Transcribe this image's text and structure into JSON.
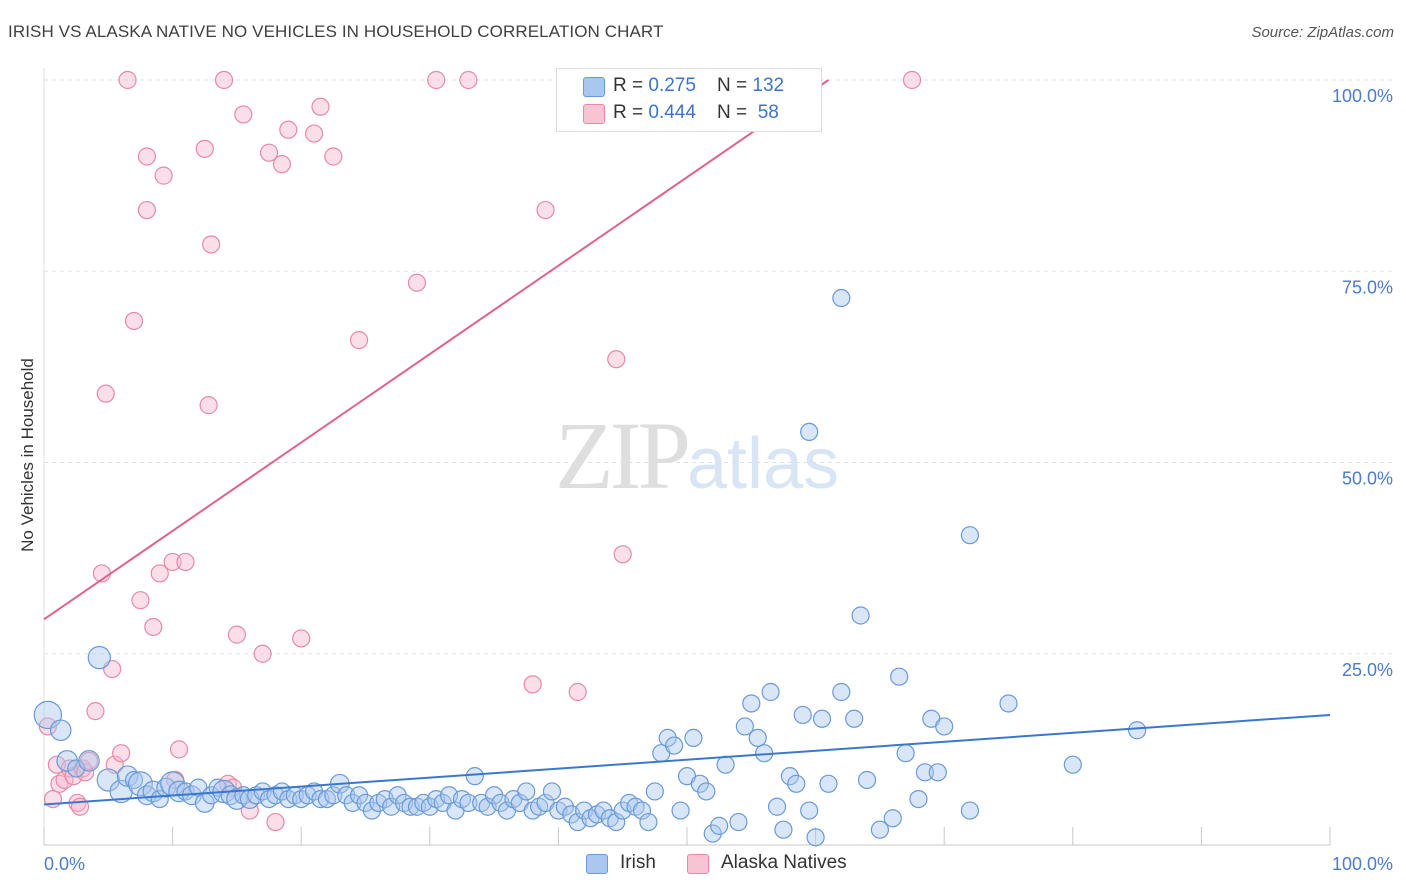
{
  "title": "IRISH VS ALASKA NATIVE NO VEHICLES IN HOUSEHOLD CORRELATION CHART",
  "source": "Source: ZipAtlas.com",
  "watermark": {
    "zip": "ZIP",
    "atlas": "atlas"
  },
  "colors": {
    "irish_fill": "#aac7f0",
    "irish_stroke": "#6a9ad6",
    "irish_line": "#3a78d0",
    "alaska_fill": "#f7b9cb",
    "alaska_stroke": "#e68aa6",
    "alaska_line": "#e0628a",
    "grid": "#dde0e6",
    "tick_text": "#4a7cc9"
  },
  "legend": {
    "irish": {
      "r_label": "R = ",
      "r_value": "0.275",
      "n_label": "N = ",
      "n_value": "132"
    },
    "alaska": {
      "r_label": "R = ",
      "r_value": "0.444",
      "n_label": "N = ",
      "n_value": " 58"
    }
  },
  "bottom_legend": {
    "irish": "Irish",
    "alaska": "Alaska Natives"
  },
  "chart_data": {
    "type": "scatter",
    "title": "IRISH VS ALASKA NATIVE NO VEHICLES IN HOUSEHOLD CORRELATION CHART",
    "xlabel": "",
    "ylabel": "No Vehicles in Household",
    "xlim": [
      0,
      100
    ],
    "ylim": [
      0,
      100
    ],
    "x_tick_labels": [
      "0.0%",
      "100.0%"
    ],
    "y_tick_labels": [
      "25.0%",
      "50.0%",
      "75.0%",
      "100.0%"
    ],
    "y_ticks": [
      25,
      50,
      75,
      100
    ],
    "legend_position": "top-center",
    "grid": true,
    "series": [
      {
        "name": "Irish",
        "r": 0.275,
        "n": 132,
        "trend": {
          "x": [
            0,
            100
          ],
          "y": [
            5.3,
            17.0
          ]
        },
        "points": [
          [
            0.3,
            17,
            1.6
          ],
          [
            1.3,
            15,
            1.2
          ],
          [
            1.8,
            11,
            1.2
          ],
          [
            2.5,
            10,
            1.0
          ],
          [
            3.5,
            11,
            1.2
          ],
          [
            4.3,
            24.5,
            1.3
          ],
          [
            5,
            8.5,
            1.3
          ],
          [
            6,
            7,
            1.3
          ],
          [
            6.5,
            9,
            1.2
          ],
          [
            7,
            8.5,
            1
          ],
          [
            7.5,
            8,
            1.4
          ],
          [
            8,
            6.5,
            1.1
          ],
          [
            8.5,
            7,
            1.2
          ],
          [
            9,
            6,
            1
          ],
          [
            9.5,
            7.5,
            1.1
          ],
          [
            10,
            8,
            1.4
          ],
          [
            10.5,
            7,
            1.2
          ],
          [
            11,
            7,
            1
          ],
          [
            11.5,
            6.5,
            1.1
          ],
          [
            12,
            7.5,
            1
          ],
          [
            12.5,
            5.5,
            1.1
          ],
          [
            13,
            6.5,
            1
          ],
          [
            13.5,
            7.5,
            1
          ],
          [
            14,
            7,
            1.3
          ],
          [
            14.5,
            6.5,
            1.1
          ],
          [
            15,
            6,
            1.2
          ],
          [
            15.5,
            6.5,
            1
          ],
          [
            16,
            6,
            1.1
          ],
          [
            16.5,
            6.5,
            1
          ],
          [
            17,
            7,
            1
          ],
          [
            17.5,
            6,
            1
          ],
          [
            18,
            6.5,
            1
          ],
          [
            18.5,
            7,
            1
          ],
          [
            19,
            6,
            1
          ],
          [
            19.5,
            6.5,
            1
          ],
          [
            20,
            6,
            1
          ],
          [
            20.5,
            6.5,
            1
          ],
          [
            21,
            7,
            1
          ],
          [
            21.5,
            6,
            1
          ],
          [
            22,
            6,
            1
          ],
          [
            22.5,
            6.5,
            1
          ],
          [
            23,
            8,
            1.1
          ],
          [
            23.5,
            6.5,
            1
          ],
          [
            24,
            5.5,
            1
          ],
          [
            24.5,
            6.5,
            1
          ],
          [
            25,
            5.5,
            1
          ],
          [
            25.5,
            4.5,
            1
          ],
          [
            26,
            5.5,
            1
          ],
          [
            26.5,
            6,
            1
          ],
          [
            27,
            5,
            1
          ],
          [
            27.5,
            6.5,
            1
          ],
          [
            28,
            5.5,
            1
          ],
          [
            28.5,
            5,
            1
          ],
          [
            29,
            5,
            1
          ],
          [
            29.5,
            5.5,
            1
          ],
          [
            30,
            5,
            1
          ],
          [
            30.5,
            6,
            1
          ],
          [
            31,
            5.5,
            1
          ],
          [
            31.5,
            6.5,
            1
          ],
          [
            32,
            4.5,
            1
          ],
          [
            32.5,
            6,
            1
          ],
          [
            33,
            5.5,
            1
          ],
          [
            33.5,
            9,
            1
          ],
          [
            34,
            5.5,
            1
          ],
          [
            34.5,
            5,
            1
          ],
          [
            35,
            6.5,
            1
          ],
          [
            35.5,
            5.5,
            1
          ],
          [
            36,
            4.5,
            1
          ],
          [
            36.5,
            6,
            1
          ],
          [
            37,
            5.5,
            1
          ],
          [
            37.5,
            7,
            1
          ],
          [
            38,
            4.5,
            1
          ],
          [
            38.5,
            5,
            1
          ],
          [
            39,
            5.5,
            1
          ],
          [
            39.5,
            7,
            1
          ],
          [
            40,
            4.5,
            1
          ],
          [
            40.5,
            5,
            1
          ],
          [
            41,
            4,
            1
          ],
          [
            41.5,
            3,
            1
          ],
          [
            42,
            4.5,
            1
          ],
          [
            42.5,
            3.5,
            1
          ],
          [
            43,
            4,
            1
          ],
          [
            43.5,
            4.5,
            1
          ],
          [
            44,
            3.5,
            1
          ],
          [
            44.5,
            3,
            1
          ],
          [
            45,
            4.5,
            1
          ],
          [
            45.5,
            5.5,
            1
          ],
          [
            46,
            5,
            1
          ],
          [
            46.5,
            4.5,
            1
          ],
          [
            47,
            3,
            1
          ],
          [
            47.5,
            7,
            1
          ],
          [
            48,
            12,
            1
          ],
          [
            48.5,
            14,
            1
          ],
          [
            49,
            13,
            1
          ],
          [
            49.5,
            4.5,
            1
          ],
          [
            50,
            9,
            1
          ],
          [
            50.5,
            14,
            1
          ],
          [
            51,
            8,
            1
          ],
          [
            51.5,
            7,
            1
          ],
          [
            52,
            1.5,
            1
          ],
          [
            52.5,
            2.5,
            1
          ],
          [
            53,
            10.5,
            1
          ],
          [
            54,
            3,
            1
          ],
          [
            54.5,
            15.5,
            1
          ],
          [
            55,
            18.5,
            1
          ],
          [
            55.5,
            14,
            1
          ],
          [
            56,
            12,
            1
          ],
          [
            56.5,
            20,
            1
          ],
          [
            57,
            5,
            1
          ],
          [
            57.5,
            2,
            1
          ],
          [
            58,
            9,
            1
          ],
          [
            58.5,
            8,
            1
          ],
          [
            59,
            17,
            1
          ],
          [
            59.5,
            4.5,
            1
          ],
          [
            60,
            1,
            1
          ],
          [
            60.5,
            16.5,
            1
          ],
          [
            61,
            8,
            1
          ],
          [
            62,
            20,
            1
          ],
          [
            63,
            16.5,
            1
          ],
          [
            64,
            8.5,
            1
          ],
          [
            65,
            2,
            1
          ],
          [
            66,
            3.5,
            1
          ],
          [
            66.5,
            22,
            1
          ],
          [
            67,
            12,
            1
          ],
          [
            68,
            6,
            1
          ],
          [
            68.5,
            9.5,
            1
          ],
          [
            69,
            16.5,
            1
          ],
          [
            69.5,
            9.5,
            1
          ],
          [
            70,
            15.5,
            1
          ],
          [
            72,
            4.5,
            1
          ],
          [
            75,
            18.5,
            1
          ],
          [
            80,
            10.5,
            1
          ],
          [
            85,
            15,
            1
          ],
          [
            59.5,
            54,
            1
          ],
          [
            62,
            71.5,
            1
          ],
          [
            63.5,
            30,
            1
          ],
          [
            72,
            40.5,
            1
          ]
        ]
      },
      {
        "name": "Alaska Natives",
        "r": 0.444,
        "n": 58,
        "trend": {
          "x": [
            0,
            61
          ],
          "y": [
            29.5,
            100
          ]
        },
        "points": [
          [
            0.3,
            15.5,
            1
          ],
          [
            0.7,
            6,
            1
          ],
          [
            1,
            10.5,
            1
          ],
          [
            1.2,
            8,
            1
          ],
          [
            1.6,
            8.5,
            1
          ],
          [
            2,
            10,
            1
          ],
          [
            2.3,
            9,
            1
          ],
          [
            2.6,
            5.5,
            1
          ],
          [
            2.8,
            5,
            1
          ],
          [
            3,
            10,
            1
          ],
          [
            3.2,
            9.5,
            1
          ],
          [
            3.5,
            11,
            1
          ],
          [
            4,
            17.5,
            1
          ],
          [
            4.5,
            35.5,
            1
          ],
          [
            4.8,
            59,
            1
          ],
          [
            5.3,
            23,
            1
          ],
          [
            5.5,
            10.5,
            1
          ],
          [
            6,
            12,
            1
          ],
          [
            6.5,
            100,
            1
          ],
          [
            7,
            68.5,
            1
          ],
          [
            7.5,
            32,
            1
          ],
          [
            8,
            83,
            1
          ],
          [
            8,
            90,
            1
          ],
          [
            8.5,
            28.5,
            1
          ],
          [
            9,
            35.5,
            1
          ],
          [
            9.3,
            87.5,
            1
          ],
          [
            10,
            37,
            1
          ],
          [
            10.5,
            12.5,
            1
          ],
          [
            11,
            37,
            1
          ],
          [
            12.5,
            91,
            1
          ],
          [
            12.8,
            57.5,
            1
          ],
          [
            13,
            78.5,
            1
          ],
          [
            14,
            100,
            1
          ],
          [
            14.3,
            8,
            1
          ],
          [
            14.7,
            7.5,
            1
          ],
          [
            15,
            27.5,
            1
          ],
          [
            15.5,
            95.5,
            1
          ],
          [
            16,
            4.5,
            1
          ],
          [
            17,
            25,
            1
          ],
          [
            17.5,
            90.5,
            1
          ],
          [
            18.5,
            89,
            1
          ],
          [
            19,
            93.5,
            1
          ],
          [
            20,
            27,
            1
          ],
          [
            21,
            93,
            1
          ],
          [
            21.5,
            96.5,
            1
          ],
          [
            22.5,
            90,
            1
          ],
          [
            24.5,
            66,
            1
          ],
          [
            29,
            73.5,
            1
          ],
          [
            30.5,
            100,
            1
          ],
          [
            33,
            100,
            1
          ],
          [
            38,
            21,
            1
          ],
          [
            39,
            83,
            1
          ],
          [
            41.5,
            20,
            1
          ],
          [
            44.5,
            63.5,
            1
          ],
          [
            45,
            38,
            1
          ],
          [
            67.5,
            100,
            1
          ],
          [
            10.2,
            8.5,
            1
          ],
          [
            18,
            3,
            1
          ]
        ]
      }
    ]
  }
}
